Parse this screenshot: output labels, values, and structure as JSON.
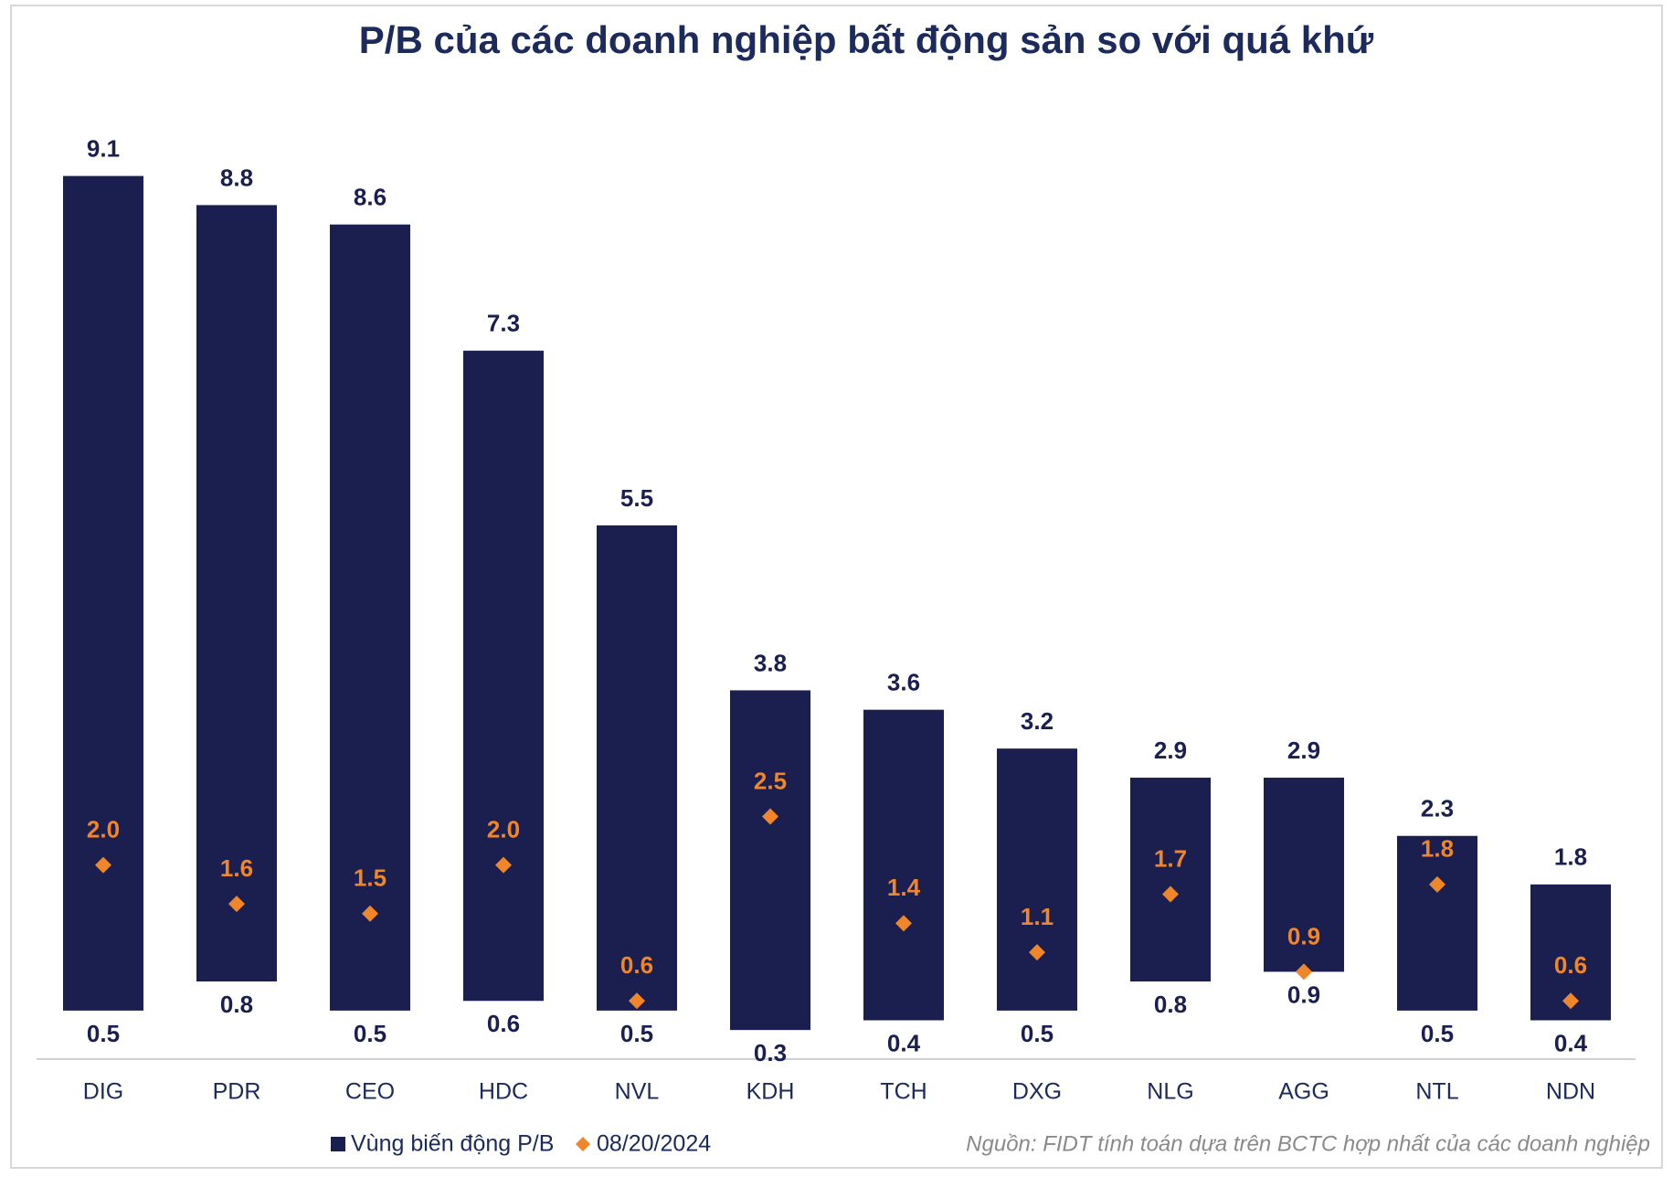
{
  "chart_data": {
    "type": "range-marker",
    "title": "P/B của các doanh nghiệp bất động sản so với quá khứ",
    "source": "Nguồn: FIDT tính toán dựa trên BCTC hợp nhất của các doanh nghiệp",
    "categories": [
      "DIG",
      "PDR",
      "CEO",
      "HDC",
      "NVL",
      "KDH",
      "TCH",
      "DXG",
      "NLG",
      "AGG",
      "NTL",
      "NDN"
    ],
    "ylim": [
      0,
      10
    ],
    "series": [
      {
        "name": "Vùng biến động P/B",
        "color": "#1b1f4f",
        "low": [
          0.5,
          0.8,
          0.5,
          0.6,
          0.5,
          0.3,
          0.4,
          0.5,
          0.8,
          0.9,
          0.5,
          0.4
        ],
        "low_labels": [
          "0.5",
          "0.8",
          "0.5",
          "0.6",
          "0.5",
          "0.3",
          "0.4",
          "0.5",
          "0.8",
          "0.9",
          "0.5",
          "0.4"
        ],
        "high": [
          9.1,
          8.8,
          8.6,
          7.3,
          5.5,
          3.8,
          3.6,
          3.2,
          2.9,
          2.9,
          2.3,
          1.8
        ],
        "high_labels": [
          "9.1",
          "8.8",
          "8.6",
          "7.3",
          "5.5",
          "3.8",
          "3.6",
          "3.2",
          "2.9",
          "2.9",
          "2.3",
          "1.8"
        ]
      },
      {
        "name": "08/20/2024",
        "color": "#f0862a",
        "values": [
          2.0,
          1.6,
          1.5,
          2.0,
          0.6,
          2.5,
          1.4,
          1.1,
          1.7,
          0.9,
          1.8,
          0.6
        ],
        "value_labels": [
          "2.0",
          "1.6",
          "1.5",
          "2.0",
          "0.6",
          "2.5",
          "1.4",
          "1.1",
          "1.7",
          "0.9",
          "1.8",
          "0.6"
        ]
      }
    ]
  }
}
